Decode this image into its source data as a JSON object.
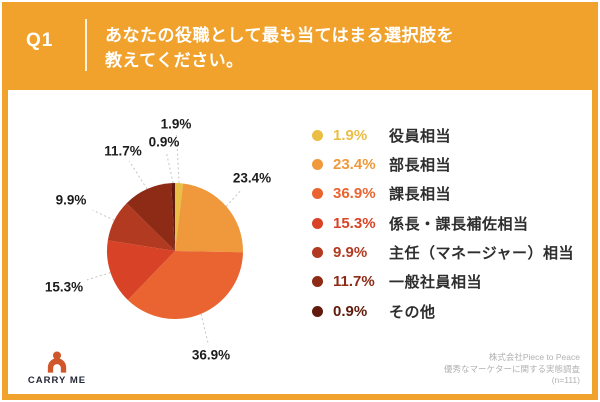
{
  "frame": {
    "accent_color": "#F0A22C",
    "background_color": "#FFFFFF"
  },
  "header": {
    "question_number": "Q1",
    "title_line1": "あなたの役職として最も当てはまる選択肢を",
    "title_line2": "教えてください。"
  },
  "chart_data": {
    "type": "pie",
    "title": "あなたの役職として最も当てはまる選択肢を教えてください。",
    "unit": "%",
    "direction": "clockwise",
    "start_angle_deg": 0,
    "legend_position": "right",
    "categories": [
      "役員相当",
      "部長相当",
      "課長相当",
      "係長・課長補佐相当",
      "主任（マネージャー）相当",
      "一般社員相当",
      "その他"
    ],
    "values": [
      1.9,
      23.4,
      36.9,
      15.3,
      9.9,
      11.7,
      0.9
    ],
    "value_labels": [
      "1.9%",
      "23.4%",
      "36.9%",
      "15.3%",
      "9.9%",
      "11.7%",
      "0.9%"
    ],
    "colors": [
      "#EABD45",
      "#F0993C",
      "#E96430",
      "#D84327",
      "#B23A20",
      "#8E2B16",
      "#601B0D"
    ]
  },
  "footer": {
    "logo_text": "CARRY ME",
    "logo_color": "#D0572A",
    "attribution_line1": "株式会社Piece to Peace",
    "attribution_line2": "優秀なマーケターに関する実態調査",
    "attribution_line3": "(n=111)"
  }
}
